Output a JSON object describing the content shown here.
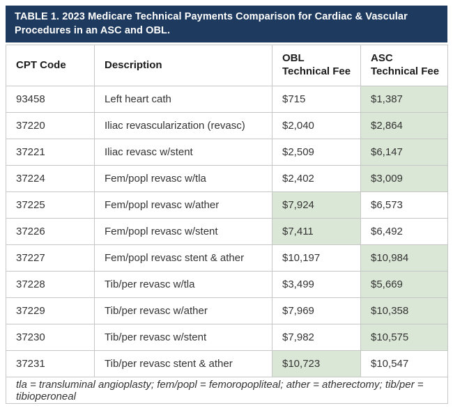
{
  "title": "TABLE 1. 2023 Medicare Technical Payments Comparison for Cardiac & Vascular Procedures in an ASC and OBL.",
  "table": {
    "columns": [
      "CPT Code",
      "Description",
      "OBL Technical Fee",
      "ASC Technical Fee"
    ],
    "rows": [
      {
        "cpt": "93458",
        "desc": "Left heart cath",
        "obl": "$715",
        "asc": "$1,387",
        "highlight": "asc"
      },
      {
        "cpt": "37220",
        "desc": "Iliac revascularization (revasc)",
        "obl": "$2,040",
        "asc": "$2,864",
        "highlight": "asc"
      },
      {
        "cpt": "37221",
        "desc": "Iliac revasc w/stent",
        "obl": "$2,509",
        "asc": "$6,147",
        "highlight": "asc"
      },
      {
        "cpt": "37224",
        "desc": "Fem/popl revasc w/tla",
        "obl": "$2,402",
        "asc": "$3,009",
        "highlight": "asc"
      },
      {
        "cpt": "37225",
        "desc": "Fem/popl revasc w/ather",
        "obl": "$7,924",
        "asc": "$6,573",
        "highlight": "obl"
      },
      {
        "cpt": "37226",
        "desc": "Fem/popl revasc w/stent",
        "obl": "$7,411",
        "asc": "$6,492",
        "highlight": "obl"
      },
      {
        "cpt": "37227",
        "desc": "Fem/popl revasc stent & ather",
        "obl": "$10,197",
        "asc": "$10,984",
        "highlight": "asc"
      },
      {
        "cpt": "37228",
        "desc": "Tib/per revasc w/tla",
        "obl": "$3,499",
        "asc": "$5,669",
        "highlight": "asc"
      },
      {
        "cpt": "37229",
        "desc": "Tib/per revasc w/ather",
        "obl": "$7,969",
        "asc": "$10,358",
        "highlight": "asc"
      },
      {
        "cpt": "37230",
        "desc": "Tib/per revasc w/stent",
        "obl": "$7,982",
        "asc": "$10,575",
        "highlight": "asc"
      },
      {
        "cpt": "37231",
        "desc": "Tib/per revasc stent & ather",
        "obl": "$10,723",
        "asc": "$10,547",
        "highlight": "obl"
      }
    ],
    "footnote": "tla = transluminal angioplasty; fem/popl = femoropopliteal; ather = atherectomy; tib/per = tibioperoneal"
  },
  "colors": {
    "title_bar_bg": "#1e3a5f",
    "title_text": "#ffffff",
    "highlight_green": "#dbe7d6",
    "border_gray": "#c6c6c6",
    "body_text": "#333333"
  }
}
